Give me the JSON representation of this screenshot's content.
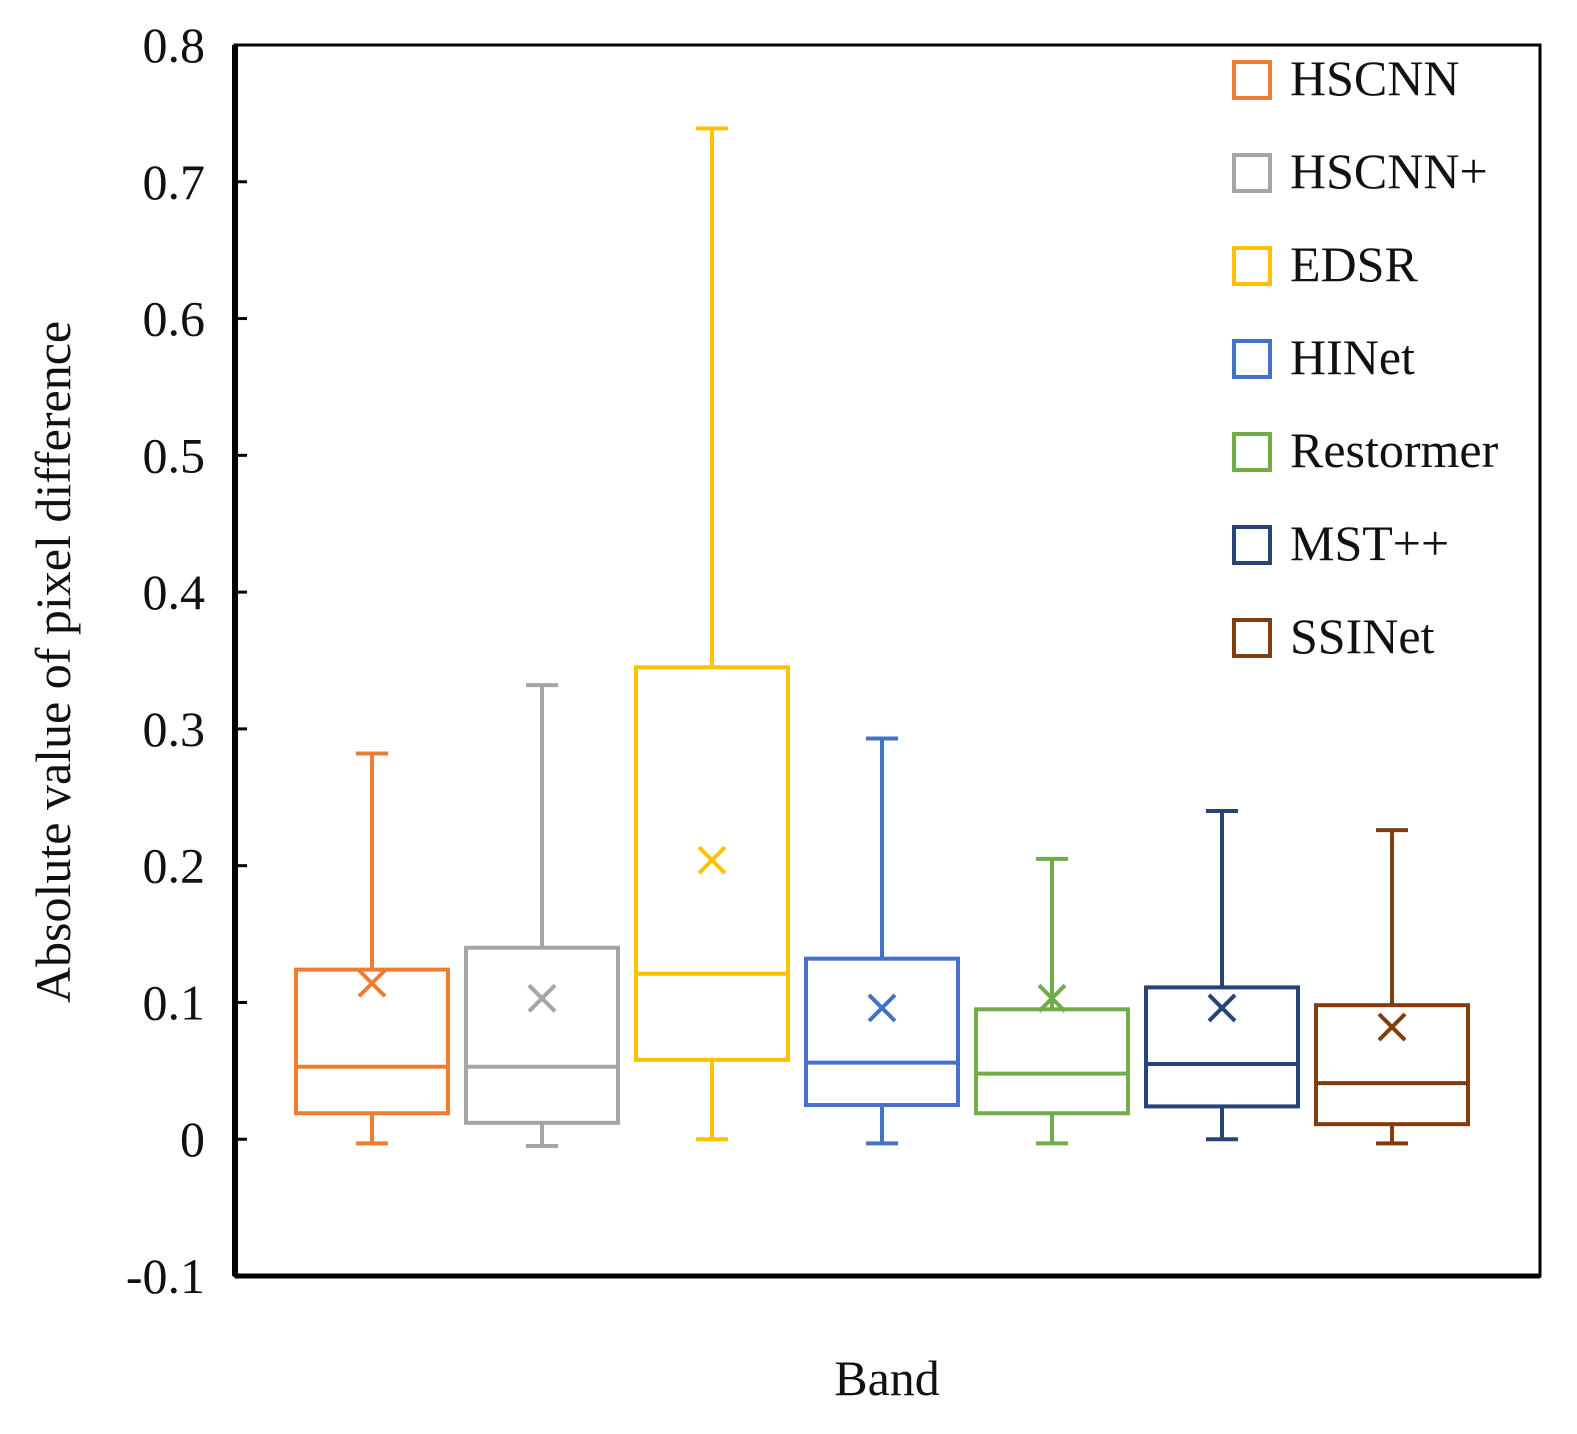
{
  "chart_data": {
    "type": "box",
    "title": "",
    "xlabel": "Band",
    "ylabel": "Absolute value of pixel difference",
    "ylim": [
      -0.1,
      0.8
    ],
    "yticks": [
      -0.1,
      0,
      0.1,
      0.2,
      0.3,
      0.4,
      0.5,
      0.6,
      0.7,
      0.8
    ],
    "ytick_labels": [
      "-0.1",
      "0",
      "0.1",
      "0.2",
      "0.3",
      "0.4",
      "0.5",
      "0.6",
      "0.7",
      "0.8"
    ],
    "grid": false,
    "legend_position": "top-right",
    "series": [
      {
        "name": "HSCNN",
        "color": "#ED7D31",
        "whisker_low": -0.003,
        "q1": 0.019,
        "median": 0.053,
        "q3": 0.124,
        "whisker_high": 0.282,
        "mean": 0.114
      },
      {
        "name": "HSCNN+",
        "color": "#A5A5A5",
        "whisker_low": -0.005,
        "q1": 0.012,
        "median": 0.053,
        "q3": 0.14,
        "whisker_high": 0.332,
        "mean": 0.103
      },
      {
        "name": "EDSR",
        "color": "#FFC000",
        "whisker_low": 0.0,
        "q1": 0.058,
        "median": 0.121,
        "q3": 0.345,
        "whisker_high": 0.739,
        "mean": 0.204
      },
      {
        "name": "HINet",
        "color": "#4472C4",
        "whisker_low": -0.003,
        "q1": 0.025,
        "median": 0.056,
        "q3": 0.132,
        "whisker_high": 0.293,
        "mean": 0.096
      },
      {
        "name": "Restormer",
        "color": "#70AD47",
        "whisker_low": -0.003,
        "q1": 0.019,
        "median": 0.048,
        "q3": 0.095,
        "whisker_high": 0.205,
        "mean": 0.103
      },
      {
        "name": "MST++",
        "color": "#264478",
        "whisker_low": 0.0,
        "q1": 0.024,
        "median": 0.055,
        "q3": 0.111,
        "whisker_high": 0.24,
        "mean": 0.096
      },
      {
        "name": "SSINet",
        "color": "#843C0C",
        "whisker_low": -0.003,
        "q1": 0.011,
        "median": 0.041,
        "q3": 0.098,
        "whisker_high": 0.226,
        "mean": 0.082
      }
    ]
  }
}
